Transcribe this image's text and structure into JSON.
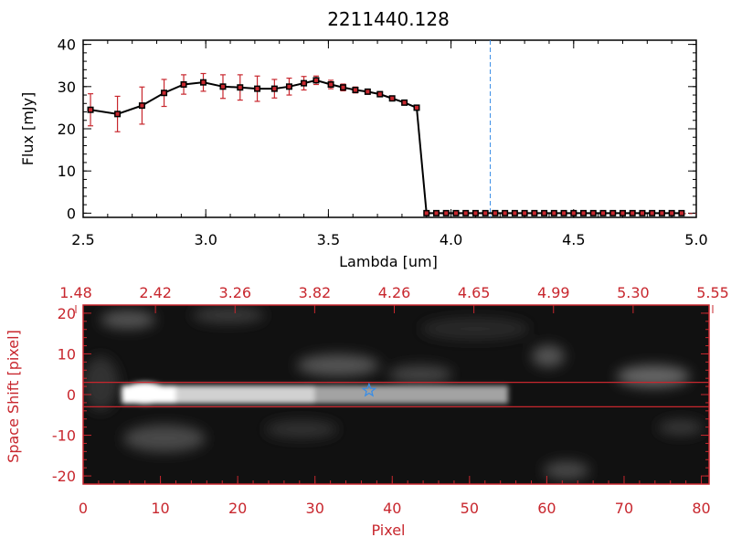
{
  "chart_data": [
    {
      "type": "line",
      "title": "2211440.128",
      "xlabel": "Lambda [um]",
      "ylabel": "Flux [mJy]",
      "xlim": [
        2.5,
        5.0
      ],
      "ylim": [
        -1,
        41
      ],
      "x_ticks": [
        "2.5",
        "3.0",
        "3.5",
        "4.0",
        "4.5",
        "5.0"
      ],
      "y_ticks": [
        "0",
        "10",
        "20",
        "30",
        "40"
      ],
      "vline_x": 4.16,
      "series": [
        {
          "x": [
            2.53,
            2.64,
            2.74,
            2.83,
            2.91,
            2.99,
            3.07,
            3.14,
            3.21,
            3.28,
            3.34,
            3.4,
            3.45,
            3.51,
            3.56,
            3.61,
            3.66,
            3.71,
            3.76,
            3.81,
            3.86,
            3.9,
            3.94,
            3.98,
            4.02,
            4.06,
            4.1,
            4.14,
            4.18,
            4.22,
            4.26,
            4.3,
            4.34,
            4.38,
            4.42,
            4.46,
            4.5,
            4.54,
            4.58,
            4.62,
            4.66,
            4.7,
            4.74,
            4.78,
            4.82,
            4.86,
            4.9,
            4.94
          ],
          "y": [
            24.5,
            23.5,
            25.5,
            28.5,
            30.5,
            31.0,
            30.0,
            29.8,
            29.5,
            29.5,
            30.0,
            30.8,
            31.5,
            30.5,
            29.8,
            29.2,
            28.8,
            28.2,
            27.2,
            26.2,
            25.0,
            0.0,
            0.0,
            0.0,
            0.0,
            0.0,
            0.0,
            0.0,
            0.0,
            0.0,
            0.0,
            0.0,
            0.0,
            0.0,
            0.0,
            0.0,
            0.0,
            0.0,
            0.0,
            0.0,
            0.0,
            0.0,
            0.0,
            0.0,
            0.0,
            0.0,
            0.0,
            0.0
          ],
          "yerr": [
            3.8,
            4.2,
            4.4,
            3.2,
            2.3,
            2.1,
            2.8,
            3.0,
            3.0,
            2.2,
            2.0,
            1.6,
            1.0,
            1.0,
            0.8,
            0.7,
            0.6,
            0.6,
            0.5,
            0.5,
            0.4,
            0,
            0,
            0,
            0,
            0,
            0,
            0,
            0,
            0,
            0,
            0,
            0,
            0,
            0,
            0,
            0,
            0,
            0,
            0,
            0,
            0,
            0,
            0,
            0,
            0,
            0,
            0
          ]
        }
      ]
    },
    {
      "type": "heatmap",
      "xlabel": "Pixel",
      "ylabel": "Space Shift [pixel]",
      "xlim": [
        0,
        81
      ],
      "ylim": [
        -22,
        22
      ],
      "x_ticks": [
        "0",
        "10",
        "20",
        "30",
        "40",
        "50",
        "60",
        "70",
        "80"
      ],
      "y_ticks": [
        "-20",
        "-10",
        "0",
        "10",
        "20"
      ],
      "top_ticks": [
        "1.48",
        "2.42",
        "3.26",
        "3.82",
        "4.26",
        "4.65",
        "4.99",
        "5.30",
        "5.55"
      ],
      "aperture_y": [
        -3,
        3
      ],
      "star_marker": {
        "x": 37,
        "y": 1
      },
      "trace": [
        {
          "x": [
            5,
            12
          ],
          "brightness": 1.0
        },
        {
          "x": [
            12,
            30
          ],
          "brightness": 0.75
        },
        {
          "x": [
            30,
            55
          ],
          "brightness": 0.5
        }
      ],
      "colors": {
        "axis": "#c8272e",
        "star": "#3a8ee6",
        "aperture": "#c8272e"
      }
    }
  ]
}
